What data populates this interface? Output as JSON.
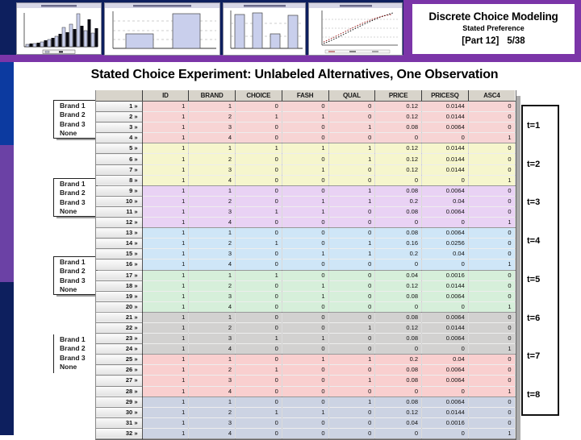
{
  "header": {
    "title": "Discrete Choice Modeling",
    "subtitle": "Stated Preference",
    "part_label": "[Part 12]",
    "page_number": "5/38",
    "thumbnails": [
      {
        "name": "histogram-thumbnail"
      },
      {
        "name": "two-bar-chart-thumbnail"
      },
      {
        "name": "four-bar-chart-thumbnail"
      },
      {
        "name": "scatter-plot-thumbnail"
      }
    ]
  },
  "slide": {
    "title": "Stated Choice Experiment: Unlabeled Alternatives, One Observation"
  },
  "colors": {
    "left_bar_blue": "#0c3aa0",
    "left_bar_purple": "#6b41a5",
    "left_bar_navy": "#0d1f5e",
    "frame_purple": "#7b35a8",
    "thumbnail_bar_fill": "#c9cfec"
  },
  "table": {
    "columns": [
      "ID",
      "BRAND",
      "CHOICE",
      "FASH",
      "QUAL",
      "PRICE",
      "PRICESQ",
      "ASC4"
    ],
    "groups": [
      {
        "t_label": "t=1",
        "color": "#f7d4d4",
        "boxed": true,
        "alt_labels": [
          "Brand 1",
          "Brand 2",
          "Brand 3",
          "None"
        ],
        "rows": [
          {
            "num": "1 »",
            "values": [
              "1",
              "1",
              "0",
              "0",
              "0",
              "0.12",
              "0.0144",
              "0"
            ]
          },
          {
            "num": "2 »",
            "values": [
              "1",
              "2",
              "1",
              "1",
              "0",
              "0.12",
              "0.0144",
              "0"
            ]
          },
          {
            "num": "3 »",
            "values": [
              "1",
              "3",
              "0",
              "0",
              "1",
              "0.08",
              "0.0064",
              "0"
            ]
          },
          {
            "num": "4 »",
            "values": [
              "1",
              "4",
              "0",
              "0",
              "0",
              "0",
              "0",
              "1"
            ]
          }
        ]
      },
      {
        "t_label": "t=2",
        "color": "#f6f6cd",
        "boxed": false,
        "rows": [
          {
            "num": "5 »",
            "values": [
              "1",
              "1",
              "1",
              "1",
              "1",
              "0.12",
              "0.0144",
              "0"
            ]
          },
          {
            "num": "6 »",
            "values": [
              "1",
              "2",
              "0",
              "0",
              "1",
              "0.12",
              "0.0144",
              "0"
            ]
          },
          {
            "num": "7 »",
            "values": [
              "1",
              "3",
              "0",
              "1",
              "0",
              "0.12",
              "0.0144",
              "0"
            ]
          },
          {
            "num": "8 »",
            "values": [
              "1",
              "4",
              "0",
              "0",
              "0",
              "0",
              "0",
              "1"
            ]
          }
        ]
      },
      {
        "t_label": "t=3",
        "color": "#e9d2f4",
        "boxed": true,
        "alt_labels": [
          "Brand 1",
          "Brand 2",
          "Brand 3",
          "None"
        ],
        "rows": [
          {
            "num": "9 »",
            "values": [
              "1",
              "1",
              "0",
              "0",
              "1",
              "0.08",
              "0.0064",
              "0"
            ]
          },
          {
            "num": "10 »",
            "values": [
              "1",
              "2",
              "0",
              "1",
              "1",
              "0.2",
              "0.04",
              "0"
            ]
          },
          {
            "num": "11 »",
            "values": [
              "1",
              "3",
              "1",
              "1",
              "0",
              "0.08",
              "0.0064",
              "0"
            ]
          },
          {
            "num": "12 »",
            "values": [
              "1",
              "4",
              "0",
              "0",
              "0",
              "0",
              "0",
              "1"
            ]
          }
        ]
      },
      {
        "t_label": "t=4",
        "color": "#cfe6f7",
        "boxed": false,
        "rows": [
          {
            "num": "13 »",
            "values": [
              "1",
              "1",
              "0",
              "0",
              "0",
              "0.08",
              "0.0064",
              "0"
            ]
          },
          {
            "num": "14 »",
            "values": [
              "1",
              "2",
              "1",
              "0",
              "1",
              "0.16",
              "0.0256",
              "0"
            ]
          },
          {
            "num": "15 »",
            "values": [
              "1",
              "3",
              "0",
              "1",
              "1",
              "0.2",
              "0.04",
              "0"
            ]
          },
          {
            "num": "16 »",
            "values": [
              "1",
              "4",
              "0",
              "0",
              "0",
              "0",
              "0",
              "1"
            ]
          }
        ]
      },
      {
        "t_label": "t=5",
        "color": "#d6efda",
        "boxed": true,
        "alt_labels": [
          "Brand 1",
          "Brand 2",
          "Brand 3",
          "None"
        ],
        "rows": [
          {
            "num": "17 »",
            "values": [
              "1",
              "1",
              "1",
              "0",
              "0",
              "0.04",
              "0.0016",
              "0"
            ]
          },
          {
            "num": "18 »",
            "values": [
              "1",
              "2",
              "0",
              "1",
              "0",
              "0.12",
              "0.0144",
              "0"
            ]
          },
          {
            "num": "19 »",
            "values": [
              "1",
              "3",
              "0",
              "1",
              "0",
              "0.08",
              "0.0064",
              "0"
            ]
          },
          {
            "num": "20 »",
            "values": [
              "1",
              "4",
              "0",
              "0",
              "0",
              "0",
              "0",
              "1"
            ]
          }
        ]
      },
      {
        "t_label": "t=6",
        "color": "#d2d1d0",
        "boxed": false,
        "rows": [
          {
            "num": "21 »",
            "values": [
              "1",
              "1",
              "0",
              "0",
              "0",
              "0.08",
              "0.0064",
              "0"
            ]
          },
          {
            "num": "22 »",
            "values": [
              "1",
              "2",
              "0",
              "0",
              "1",
              "0.12",
              "0.0144",
              "0"
            ]
          },
          {
            "num": "23 »",
            "values": [
              "1",
              "3",
              "1",
              "1",
              "0",
              "0.08",
              "0.0064",
              "0"
            ]
          },
          {
            "num": "24 »",
            "values": [
              "1",
              "4",
              "0",
              "0",
              "0",
              "0",
              "0",
              "1"
            ]
          }
        ]
      },
      {
        "t_label": "t=7",
        "color": "#f9cfcf",
        "boxed": false,
        "line_only": true,
        "alt_labels": [
          "Brand 1",
          "Brand 2",
          "Brand 3",
          "None"
        ],
        "rows": [
          {
            "num": "25 »",
            "values": [
              "1",
              "1",
              "0",
              "1",
              "1",
              "0.2",
              "0.04",
              "0"
            ]
          },
          {
            "num": "26 »",
            "values": [
              "1",
              "2",
              "1",
              "0",
              "0",
              "0.08",
              "0.0064",
              "0"
            ]
          },
          {
            "num": "27 »",
            "values": [
              "1",
              "3",
              "0",
              "0",
              "1",
              "0.08",
              "0.0064",
              "0"
            ]
          },
          {
            "num": "28 »",
            "values": [
              "1",
              "4",
              "0",
              "0",
              "0",
              "0",
              "0",
              "1"
            ]
          }
        ]
      },
      {
        "t_label": "t=8",
        "color": "#ccd3e3",
        "boxed": false,
        "rows": [
          {
            "num": "29 »",
            "values": [
              "1",
              "1",
              "0",
              "0",
              "1",
              "0.08",
              "0.0064",
              "0"
            ]
          },
          {
            "num": "30 »",
            "values": [
              "1",
              "2",
              "1",
              "1",
              "0",
              "0.12",
              "0.0144",
              "0"
            ]
          },
          {
            "num": "31 »",
            "values": [
              "1",
              "3",
              "0",
              "0",
              "0",
              "0.04",
              "0.0016",
              "0"
            ]
          },
          {
            "num": "32 »",
            "values": [
              "1",
              "4",
              "0",
              "0",
              "0",
              "0",
              "0",
              "1"
            ]
          }
        ]
      }
    ]
  }
}
